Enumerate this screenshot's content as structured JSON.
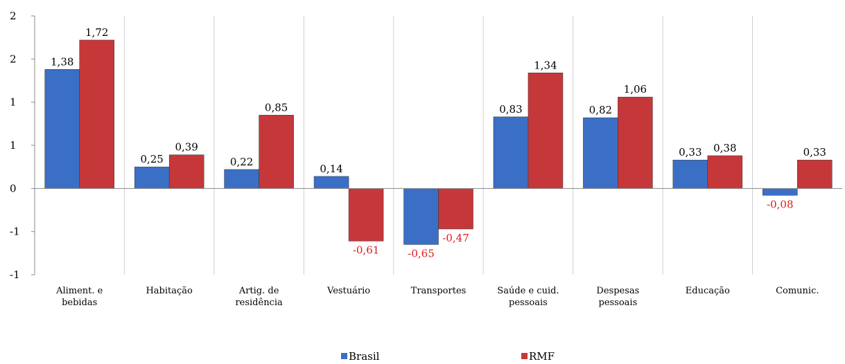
{
  "chart_data": {
    "type": "bar",
    "categories": [
      "Aliment. e\nbebidas",
      "Habitação",
      "Artig. de\nresidência",
      "Vestuário",
      "Transportes",
      "Saúde e cuid.\npessoais",
      "Despesas\npessoais",
      "Educação",
      "Comunic."
    ],
    "series": [
      {
        "name": "Brasil",
        "color": "#3b6fc6",
        "values": [
          1.38,
          0.25,
          0.22,
          0.14,
          -0.65,
          0.83,
          0.82,
          0.33,
          -0.08
        ],
        "value_labels": [
          "1,38",
          "0,25",
          "0,22",
          "0,14",
          "-0,65",
          "0,83",
          "0,82",
          "0,33",
          "-0,08"
        ]
      },
      {
        "name": "RMF",
        "color": "#c6373a",
        "values": [
          1.72,
          0.39,
          0.85,
          -0.61,
          -0.47,
          1.34,
          1.06,
          0.38,
          0.33
        ],
        "value_labels": [
          "1,72",
          "0,39",
          "0,85",
          "-0,61",
          "-0,47",
          "1,34",
          "1,06",
          "0,38",
          "0,33"
        ]
      }
    ],
    "ylim": [
      -1,
      2
    ],
    "yticks": [
      {
        "value": -1,
        "label": "-1"
      },
      {
        "value": -0.5,
        "label": "-1"
      },
      {
        "value": 0,
        "label": "0"
      },
      {
        "value": 0.5,
        "label": "1"
      },
      {
        "value": 1,
        "label": "1"
      },
      {
        "value": 1.5,
        "label": "2"
      },
      {
        "value": 2,
        "label": "2"
      }
    ],
    "negative_label_color": "#e0191c",
    "legend": "bottom"
  }
}
